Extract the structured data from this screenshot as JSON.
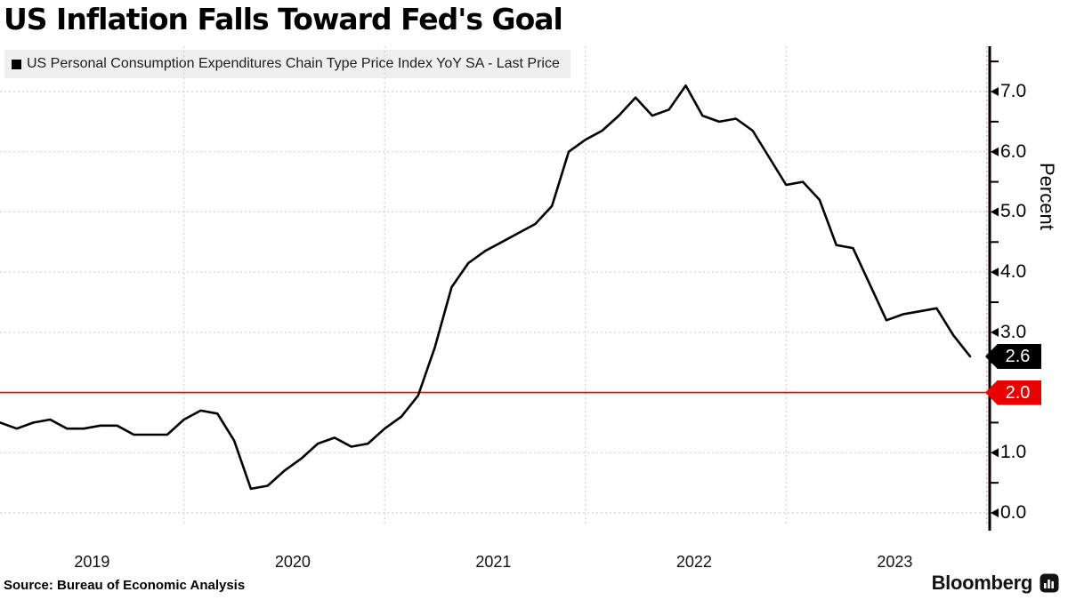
{
  "title": "US Inflation Falls Toward Fed's Goal",
  "legend": {
    "swatch_color": "#000000",
    "label": "US Personal Consumption Expenditures Chain Type Price Index YoY SA - Last Price"
  },
  "y_axis": {
    "label": "Percent",
    "ticks": [
      "0.0",
      "1.0",
      "2.0",
      "3.0",
      "4.0",
      "5.0",
      "6.0",
      "7.0"
    ]
  },
  "x_axis": {
    "year_labels": [
      "2019",
      "2020",
      "2021",
      "2022",
      "2023"
    ]
  },
  "markers": {
    "last_price": {
      "label": "2.6",
      "value": 2.6,
      "bg_color": "#000000",
      "text_color": "#ffffff"
    },
    "fed_goal": {
      "label": "2.0",
      "value": 2.0,
      "bg_color": "#e80000",
      "text_color": "#ffffff",
      "line_color": "#e80000"
    }
  },
  "source": "Source: Bureau of Economic Analysis",
  "brand": "Bloomberg",
  "chart_data": {
    "type": "line",
    "title": "US Inflation Falls Toward Fed's Goal",
    "ylabel": "Percent",
    "ylim": [
      -0.3,
      7.75
    ],
    "yticks": [
      0,
      1,
      2,
      3,
      4,
      5,
      6,
      7
    ],
    "grid": true,
    "legend_position": "top-left",
    "reference_line": {
      "value": 2.0,
      "label": "2.0"
    },
    "last_price": 2.6,
    "x": [
      "Jan 2019",
      "Feb 2019",
      "Mar 2019",
      "Apr 2019",
      "May 2019",
      "Jun 2019",
      "Jul 2019",
      "Aug 2019",
      "Sep 2019",
      "Oct 2019",
      "Nov 2019",
      "Dec 2019",
      "Jan 2020",
      "Feb 2020",
      "Mar 2020",
      "Apr 2020",
      "May 2020",
      "Jun 2020",
      "Jul 2020",
      "Aug 2020",
      "Sep 2020",
      "Oct 2020",
      "Nov 2020",
      "Dec 2020",
      "Jan 2021",
      "Feb 2021",
      "Mar 2021",
      "Apr 2021",
      "May 2021",
      "Jun 2021",
      "Jul 2021",
      "Aug 2021",
      "Sep 2021",
      "Oct 2021",
      "Nov 2021",
      "Dec 2021",
      "Jan 2022",
      "Feb 2022",
      "Mar 2022",
      "Apr 2022",
      "May 2022",
      "Jun 2022",
      "Jul 2022",
      "Aug 2022",
      "Sep 2022",
      "Oct 2022",
      "Nov 2022",
      "Dec 2022",
      "Jan 2023",
      "Feb 2023",
      "Mar 2023",
      "Apr 2023",
      "May 2023",
      "Jun 2023",
      "Jul 2023",
      "Aug 2023",
      "Sep 2023",
      "Oct 2023",
      "Nov 2023"
    ],
    "series": [
      {
        "name": "US Personal Consumption Expenditures Chain Type Price Index YoY SA - Last Price",
        "color": "#000000",
        "values": [
          1.5,
          1.4,
          1.5,
          1.55,
          1.4,
          1.4,
          1.45,
          1.45,
          1.3,
          1.3,
          1.3,
          1.55,
          1.7,
          1.65,
          1.2,
          0.4,
          0.45,
          0.7,
          0.9,
          1.15,
          1.25,
          1.1,
          1.15,
          1.4,
          1.6,
          1.95,
          2.75,
          3.75,
          4.15,
          4.35,
          4.5,
          4.65,
          4.8,
          5.1,
          6.0,
          6.2,
          6.35,
          6.6,
          6.9,
          6.6,
          6.7,
          7.1,
          6.6,
          6.5,
          6.55,
          6.35,
          5.9,
          5.45,
          5.5,
          5.2,
          4.45,
          4.4,
          3.8,
          3.2,
          3.3,
          3.35,
          3.4,
          2.95,
          2.6
        ]
      }
    ]
  }
}
